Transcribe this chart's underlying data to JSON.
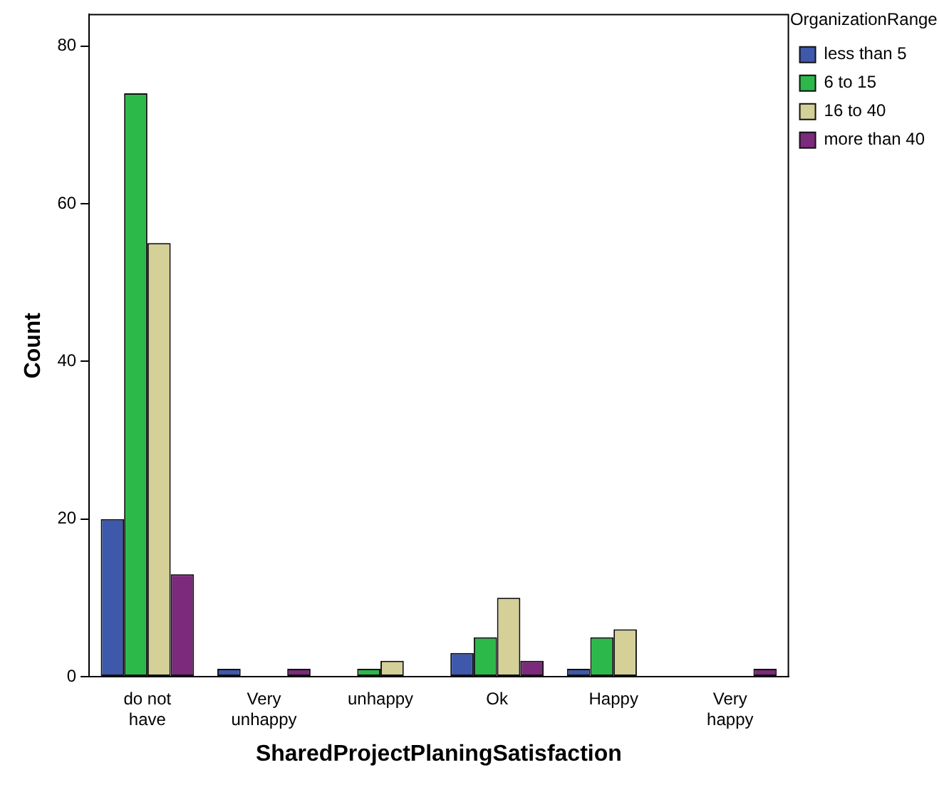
{
  "chart_data": {
    "type": "bar",
    "xlabel": "SharedProjectPlaningSatisfaction",
    "ylabel": "Count",
    "legend_title": "OrganizationRange",
    "legend": "top right",
    "grid": false,
    "categories": [
      "do not have",
      "Very unhappy",
      "unhappy",
      "Ok",
      "Happy",
      "Very happy"
    ],
    "series": [
      {
        "name": "less than 5",
        "color": "#3e58ac",
        "values": [
          20,
          1,
          0,
          3,
          1,
          0
        ]
      },
      {
        "name": "6 to 15",
        "color": "#2db84a",
        "values": [
          74,
          0,
          1,
          5,
          5,
          0
        ]
      },
      {
        "name": "16 to 40",
        "color": "#d4d097",
        "values": [
          55,
          0,
          2,
          10,
          6,
          0
        ]
      },
      {
        "name": "more than 40",
        "color": "#7b2a7c",
        "values": [
          13,
          1,
          0,
          2,
          0,
          1
        ]
      }
    ],
    "ylim": [
      0,
      84
    ],
    "yticks": [
      0,
      20,
      40,
      60,
      80
    ]
  }
}
